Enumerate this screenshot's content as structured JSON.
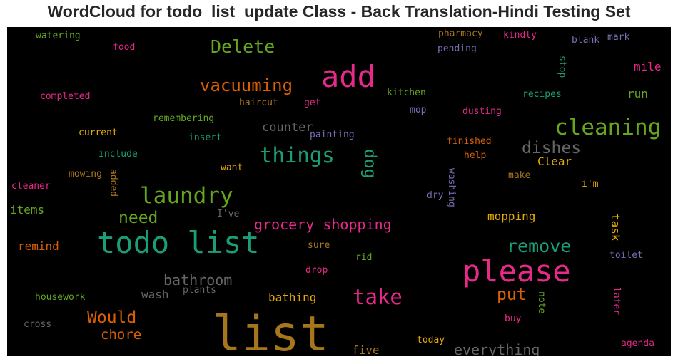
{
  "chart_data": {
    "type": "wordcloud",
    "title": "WordCloud for todo_list_update Class - Back Translation-Hindi Testing Set",
    "background": "#000000",
    "colors": {
      "teal": "#1b9e77",
      "orange": "#d95f02",
      "purple": "#7570b3",
      "pink": "#e7298a",
      "green": "#66a61e",
      "gold": "#e6ab02",
      "brown": "#a6761d",
      "gray": "#666666"
    },
    "words": [
      {
        "text": "list",
        "color": "brown",
        "rotate": 0
      },
      {
        "text": "todo list",
        "color": "teal",
        "rotate": 0
      },
      {
        "text": "please",
        "color": "pink",
        "rotate": 0
      },
      {
        "text": "add",
        "color": "pink",
        "rotate": 0
      },
      {
        "text": "cleaning",
        "color": "green",
        "rotate": 0
      },
      {
        "text": "laundry",
        "color": "green",
        "rotate": 0
      },
      {
        "text": "things",
        "color": "teal",
        "rotate": 0
      },
      {
        "text": "take",
        "color": "pink",
        "rotate": 0
      },
      {
        "text": "remove",
        "color": "teal",
        "rotate": 0
      },
      {
        "text": "Delete",
        "color": "green",
        "rotate": 0
      },
      {
        "text": "vacuuming",
        "color": "orange",
        "rotate": 0
      },
      {
        "text": "dishes",
        "color": "gray",
        "rotate": 0
      },
      {
        "text": "need",
        "color": "green",
        "rotate": 0
      },
      {
        "text": "Would",
        "color": "orange",
        "rotate": 0
      },
      {
        "text": "put",
        "color": "orange",
        "rotate": 0
      },
      {
        "text": "dog",
        "color": "teal",
        "rotate": 90
      },
      {
        "text": "grocery shopping",
        "color": "pink",
        "rotate": 0
      },
      {
        "text": "bathroom",
        "color": "gray",
        "rotate": 0
      },
      {
        "text": "everything",
        "color": "gray",
        "rotate": 0
      },
      {
        "text": "chore",
        "color": "orange",
        "rotate": 0
      },
      {
        "text": "counter",
        "color": "gray",
        "rotate": 0
      },
      {
        "text": "wash",
        "color": "gray",
        "rotate": 0
      },
      {
        "text": "mopping",
        "color": "gold",
        "rotate": 0
      },
      {
        "text": "Clear",
        "color": "gold",
        "rotate": 0
      },
      {
        "text": "bathing",
        "color": "gold",
        "rotate": 0
      },
      {
        "text": "task",
        "color": "gold",
        "rotate": 90
      },
      {
        "text": "mile",
        "color": "pink",
        "rotate": 0
      },
      {
        "text": "run",
        "color": "green",
        "rotate": 0
      },
      {
        "text": "items",
        "color": "green",
        "rotate": 0
      },
      {
        "text": "remind",
        "color": "orange",
        "rotate": 0
      },
      {
        "text": "five",
        "color": "brown",
        "rotate": 0
      },
      {
        "text": "watering",
        "color": "green",
        "rotate": 0
      },
      {
        "text": "food",
        "color": "pink",
        "rotate": 0
      },
      {
        "text": "completed",
        "color": "pink",
        "rotate": 0
      },
      {
        "text": "pharmacy",
        "color": "brown",
        "rotate": 0
      },
      {
        "text": "pending",
        "color": "purple",
        "rotate": 0
      },
      {
        "text": "kindly",
        "color": "pink",
        "rotate": 0
      },
      {
        "text": "blank",
        "color": "purple",
        "rotate": 0
      },
      {
        "text": "mark",
        "color": "purple",
        "rotate": 0
      },
      {
        "text": "stop",
        "color": "teal",
        "rotate": 90
      },
      {
        "text": "kitchen",
        "color": "green",
        "rotate": 0
      },
      {
        "text": "recipes",
        "color": "teal",
        "rotate": 0
      },
      {
        "text": "haircut",
        "color": "brown",
        "rotate": 0
      },
      {
        "text": "get",
        "color": "pink",
        "rotate": 0
      },
      {
        "text": "mop",
        "color": "purple",
        "rotate": 0
      },
      {
        "text": "dusting",
        "color": "pink",
        "rotate": 0
      },
      {
        "text": "remembering",
        "color": "green",
        "rotate": 0
      },
      {
        "text": "current",
        "color": "gold",
        "rotate": 0
      },
      {
        "text": "insert",
        "color": "teal",
        "rotate": 0
      },
      {
        "text": "painting",
        "color": "purple",
        "rotate": 0
      },
      {
        "text": "finished",
        "color": "orange",
        "rotate": 0
      },
      {
        "text": "include",
        "color": "teal",
        "rotate": 0
      },
      {
        "text": "help",
        "color": "orange",
        "rotate": 0
      },
      {
        "text": "want",
        "color": "gold",
        "rotate": 0
      },
      {
        "text": "mowing",
        "color": "brown",
        "rotate": 0
      },
      {
        "text": "added",
        "color": "brown",
        "rotate": 90
      },
      {
        "text": "make",
        "color": "brown",
        "rotate": 0
      },
      {
        "text": "washing",
        "color": "purple",
        "rotate": 90
      },
      {
        "text": "i'm",
        "color": "gold",
        "rotate": 0
      },
      {
        "text": "cleaner",
        "color": "pink",
        "rotate": 0
      },
      {
        "text": "dry",
        "color": "purple",
        "rotate": 0
      },
      {
        "text": "I've",
        "color": "gray",
        "rotate": 0
      },
      {
        "text": "sure",
        "color": "brown",
        "rotate": 0
      },
      {
        "text": "rid",
        "color": "green",
        "rotate": 0
      },
      {
        "text": "toilet",
        "color": "purple",
        "rotate": 0
      },
      {
        "text": "drop",
        "color": "pink",
        "rotate": 0
      },
      {
        "text": "housework",
        "color": "green",
        "rotate": 0
      },
      {
        "text": "plants",
        "color": "gray",
        "rotate": 0
      },
      {
        "text": "note",
        "color": "green",
        "rotate": 90
      },
      {
        "text": "later",
        "color": "pink",
        "rotate": 90
      },
      {
        "text": "buy",
        "color": "pink",
        "rotate": 0
      },
      {
        "text": "cross",
        "color": "gray",
        "rotate": 0
      },
      {
        "text": "today",
        "color": "gold",
        "rotate": 0
      },
      {
        "text": "agenda",
        "color": "pink",
        "rotate": 0
      }
    ]
  }
}
